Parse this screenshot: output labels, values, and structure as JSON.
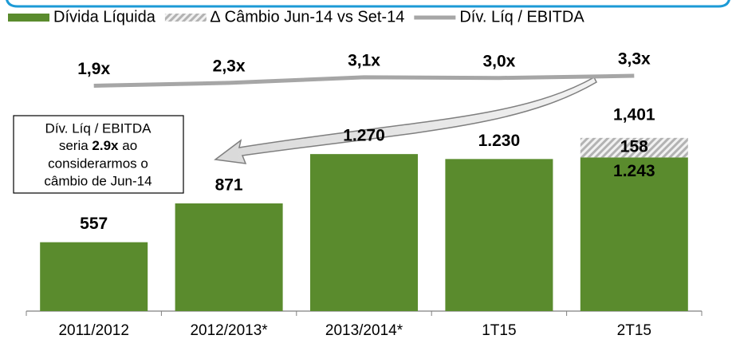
{
  "chart_data": {
    "type": "bar",
    "categories": [
      "2011/2012",
      "2012/2013*",
      "2013/2014*",
      "1T15",
      "2T15"
    ],
    "series": [
      {
        "name": "Dívida Líquida",
        "color": "#5a8b2d",
        "values": [
          557,
          871,
          1270,
          1230,
          1243
        ],
        "value_labels": [
          "557",
          "871",
          "1.270",
          "1.230",
          "1.243"
        ]
      },
      {
        "name": "∆ Câmbio Jun-14 vs Set-14",
        "color": "#bfbfbf",
        "pattern": "hatch",
        "values": [
          null,
          null,
          null,
          null,
          158
        ],
        "value_labels": [
          null,
          null,
          null,
          null,
          "158"
        ]
      },
      {
        "name": "Dív. Líq / EBITDA",
        "type": "line",
        "axis": "y2",
        "color": "#a6a6a6",
        "values": [
          1.9,
          2.3,
          3.1,
          3.0,
          3.3
        ],
        "value_labels": [
          "1,9x",
          "2,3x",
          "3,1x",
          "3,0x",
          "3,3x"
        ]
      }
    ],
    "totals": [
      {
        "index": 4,
        "value": 1401,
        "label": "1,401"
      }
    ],
    "ylim": [
      0,
      2000
    ],
    "y2lim": [
      -30,
      5
    ],
    "note": [
      "Dív. Líq / EBITDA",
      "seria",
      "2.9x",
      "ao",
      "considerarmos o",
      "câmbio de Jun-14"
    ]
  }
}
